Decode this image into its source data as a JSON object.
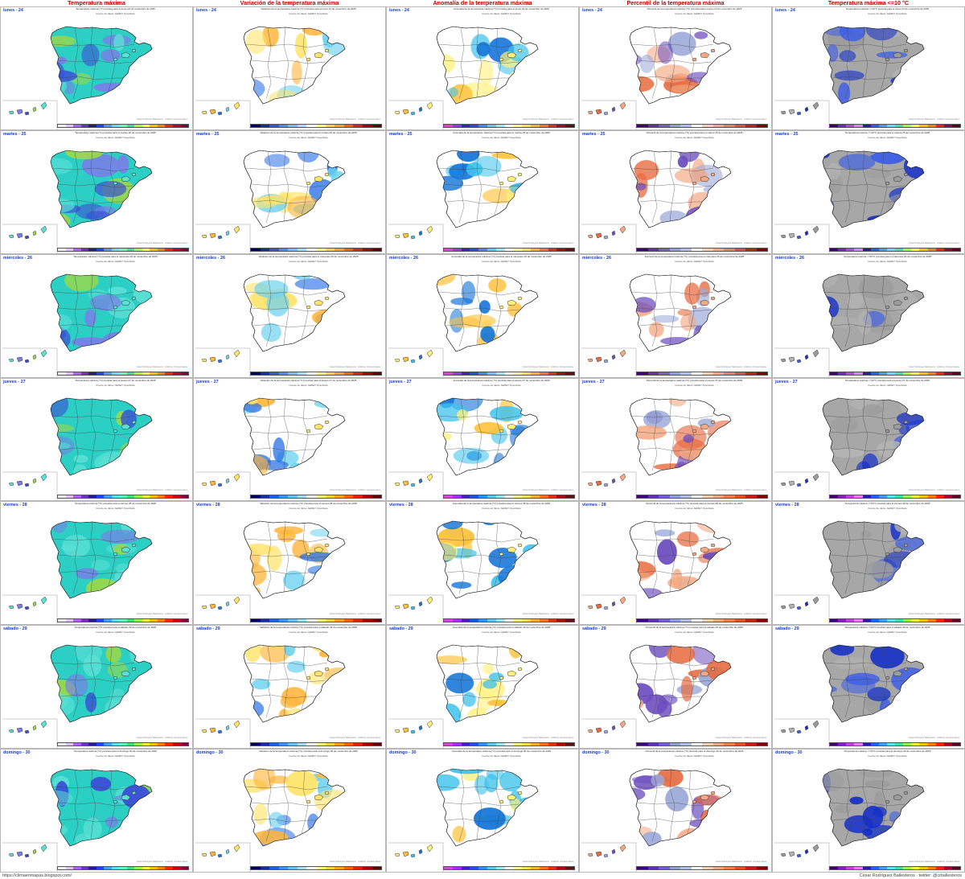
{
  "headers": [
    "Temperatura máxima",
    "Variación de la temperatura máxima",
    "Anomalía de la temperatura máxima",
    "Percentil de la temperatura máxima",
    "Temperatura máxima <=10 °C"
  ],
  "days": [
    {
      "label": "lunes - 24",
      "date_text": "lunes 24 de noviembre de 2025"
    },
    {
      "label": "martes - 25",
      "date_text": "martes 25 de noviembre de 2025"
    },
    {
      "label": "miércoles - 26",
      "date_text": "miércoles 26 de noviembre de 2025"
    },
    {
      "label": "jueves - 27",
      "date_text": "jueves 27 de noviembre de 2025"
    },
    {
      "label": "viernes - 28",
      "date_text": "viernes 28 de noviembre de 2025"
    },
    {
      "label": "sábado - 29",
      "date_text": "sábado 29 de noviembre de 2025"
    },
    {
      "label": "domingo - 30",
      "date_text": "domingo 30 de noviembre de 2025"
    }
  ],
  "panel_titles": [
    "Temperatura máxima (°C) prevista para el",
    "Variación de la temperatura máxima (°C) prevista para el",
    "Anomalía de la temperatura máxima (°C) prevista para el",
    "Percentil de la temperatura máxima (°C) prevista para el",
    "Temperatura máxima <=10°C prevista para el"
  ],
  "source_text": "Fuente de datos: AEMET OpenData",
  "credit_text": "César Rodríguez Ballesteros · Gráficos: climaenmapas",
  "colors": {
    "header": "#c00000",
    "day_label": "#1a3cc8",
    "border": "#b8b8b8"
  },
  "map_fill_themes": [
    [
      "#2ccfc4",
      "#5be0d6",
      "#7b7de8",
      "#3b4fd6",
      "#9ad84a"
    ],
    [
      "#ffffff",
      "#ffe36a",
      "#ffb63c",
      "#2d73e6",
      "#6fd3f0"
    ],
    [
      "#ffffff",
      "#fff07a",
      "#ffc23a",
      "#3fc3ec",
      "#1776d8"
    ],
    [
      "#ffffff",
      "#f4a983",
      "#e86c40",
      "#9aa8d8",
      "#6e4fbf"
    ],
    [
      "#a7a7a7",
      "#9c9c9c",
      "#b3b3b3",
      "#3d5fe6",
      "#1630c8"
    ]
  ],
  "scale_palettes": [
    [
      "#f0f0f0",
      "#e0c0ff",
      "#b060ff",
      "#7030c0",
      "#202080",
      "#2040ff",
      "#40a0ff",
      "#60e0ff",
      "#60ffc0",
      "#40e080",
      "#a0ff40",
      "#ffff40",
      "#ffc000",
      "#ff8000",
      "#ff2000",
      "#c00020",
      "#800040"
    ],
    [
      "#000060",
      "#1030a0",
      "#2060e0",
      "#4090ff",
      "#70c0ff",
      "#a0e0ff",
      "#ffffff",
      "#ffff80",
      "#ffd040",
      "#ffa020",
      "#ff6000",
      "#e02000",
      "#a00000",
      "#600000"
    ],
    [
      "#e040e0",
      "#a030ff",
      "#4020c0",
      "#2050e0",
      "#3090ff",
      "#60c8ff",
      "#a0e8ff",
      "#ffffff",
      "#ffff90",
      "#ffe050",
      "#ffb030",
      "#ff7020",
      "#e03010",
      "#a01010",
      "#601010"
    ],
    [
      "#400080",
      "#6030b0",
      "#7060c8",
      "#90a0d8",
      "#b0c0e8",
      "#ffffff",
      "#f8d0b0",
      "#f4a880",
      "#ec8050",
      "#e05030",
      "#c02010",
      "#800000"
    ],
    [
      "#400070",
      "#8020c0",
      "#c040e0",
      "#e080ff",
      "#2020a0",
      "#2060ff",
      "#40a0ff",
      "#60e0ff",
      "#40e0a0",
      "#a0ff40",
      "#ffff40",
      "#ffc000",
      "#ff8000",
      "#ff2000",
      "#a00030",
      "#600020"
    ]
  ],
  "footer": {
    "left": "https://climaenmapas.blogspot.com/",
    "right": "César Rodríguez Ballesteros · twitter: @crballesteros"
  }
}
